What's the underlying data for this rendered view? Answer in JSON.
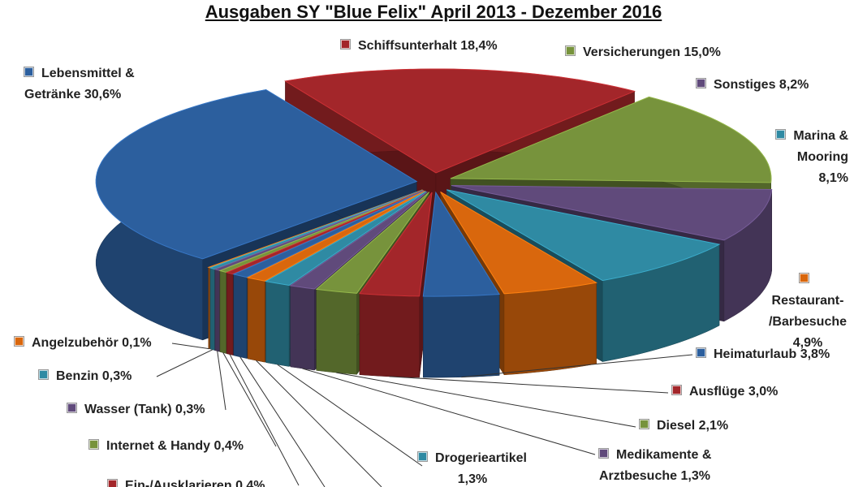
{
  "chart_data": {
    "type": "pie3d",
    "title": "Ausgaben SY \"Blue Felix\" April 2013 - Dezember 2016",
    "categories": [
      "Schiffsunterhalt",
      "Versicherungen",
      "Sonstiges",
      "Marina &\nMooring",
      "Restaurant-\n/Barbesuche",
      "Heimaturlaub",
      "Ausflüge",
      "Diesel",
      "Medikamente &\nArztbesuche",
      "Drogerieartikel",
      null,
      null,
      "Ein-/Ausklarieren",
      "Internet & Handy",
      "Wasser (Tank)",
      "Benzin",
      "Angelzubehör",
      "Lebensmittel &\nGetränke"
    ],
    "values": [
      18.4,
      15.0,
      8.2,
      8.1,
      4.9,
      3.8,
      3.0,
      2.1,
      1.3,
      1.3,
      1.0,
      0.8,
      0.4,
      0.4,
      0.3,
      0.3,
      0.1,
      30.6
    ],
    "value_labels": [
      "18,4%",
      "15,0%",
      "8,2%",
      "8,1%",
      "4,9%",
      "3,8%",
      "3,0%",
      "2,1%",
      "1,3%",
      "1,3%",
      null,
      null,
      "0,4%",
      "0,4%",
      "0,3%",
      "0,3%",
      "0,1%",
      "30,6%"
    ],
    "colors": [
      "#a3262a",
      "#77933c",
      "#604a7b",
      "#2f8aa3",
      "#d9670d",
      "#2c5f9e",
      "#a3262a",
      "#77933c",
      "#604a7b",
      "#2f8aa3",
      "#d9670d",
      "#2c5f9e",
      "#a3262a",
      "#77933c",
      "#604a7b",
      "#2f8aa3",
      "#d9670d",
      "#2c5f9e"
    ]
  }
}
